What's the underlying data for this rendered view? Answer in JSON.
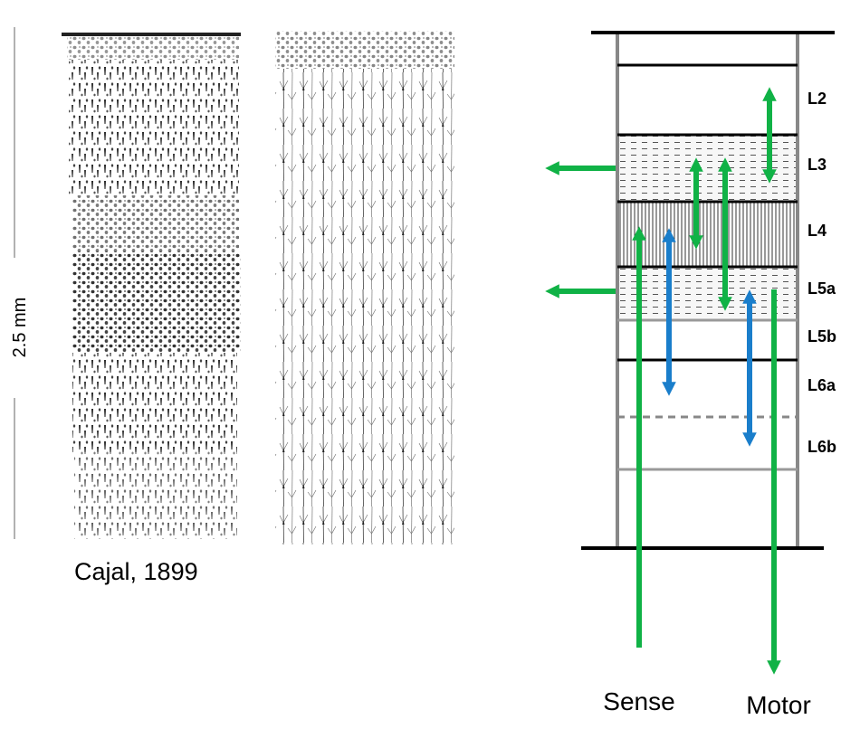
{
  "scale_bar": {
    "label": "2.5 mm"
  },
  "citation": {
    "label": "Cajal, 1899"
  },
  "layers": [
    {
      "label": "L2",
      "pattern": "blank"
    },
    {
      "label": "L3",
      "pattern": "dashed"
    },
    {
      "label": "L4",
      "pattern": "vertical-lines"
    },
    {
      "label": "L5a",
      "pattern": "dashed"
    },
    {
      "label": "L5b",
      "pattern": "blank"
    },
    {
      "label": "L6a",
      "pattern": "blank"
    },
    {
      "label": "L6b",
      "pattern": "blank"
    }
  ],
  "io_labels": {
    "input": "Sense",
    "output": "Motor"
  },
  "colors": {
    "intracolumnar_arrow": "#1a7ecb",
    "projection_arrow": "#10b246"
  }
}
